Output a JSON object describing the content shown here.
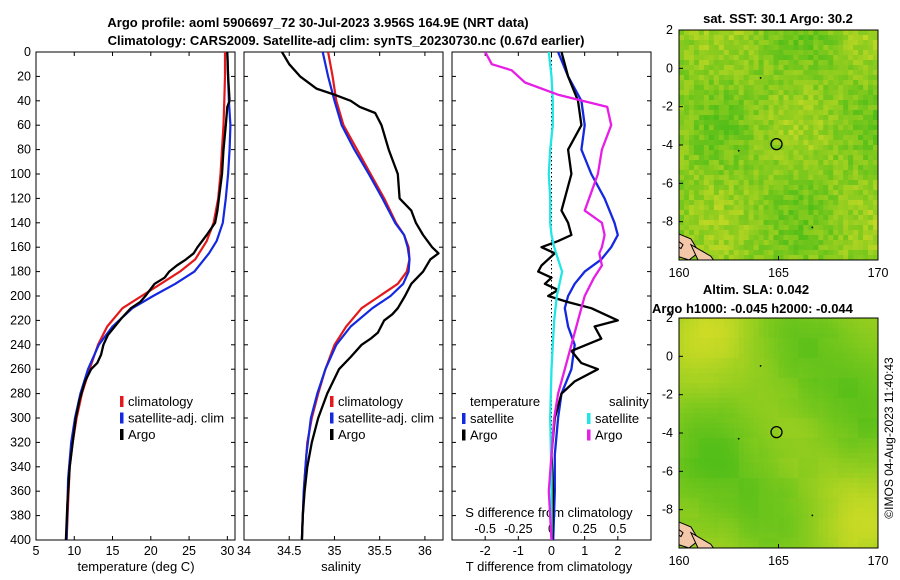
{
  "title_line1": "Argo profile: aoml 5906697_72 30-Jul-2023 3.956S 164.9E (NRT data)",
  "title_line2": "Climatology: CARS2009. Satellite-adj clim: synTS_20230730.nc (0.67d earlier)",
  "copyright": "©IMOS 04-Aug-2023 11:40:43",
  "colors": {
    "climatology": "#e31a1c",
    "satellite": "#1428e0",
    "argo": "#000000",
    "cyan": "#22e6e6",
    "magenta": "#e61ee6",
    "land": "#f2c8a8"
  },
  "chart_data": [
    {
      "type": "line",
      "xlabel": "temperature (deg C)",
      "ylabel": "",
      "xlim": [
        5,
        31
      ],
      "ylim": [
        0,
        400
      ],
      "xticks": [
        "5",
        "10",
        "15",
        "20",
        "25",
        "30"
      ],
      "yticks": [
        "0",
        "20",
        "40",
        "60",
        "80",
        "100",
        "120",
        "140",
        "160",
        "180",
        "200",
        "220",
        "240",
        "260",
        "280",
        "300",
        "320",
        "340",
        "360",
        "380",
        "400"
      ],
      "legend": [
        "climatology",
        "satellite-adj. clim",
        "Argo"
      ],
      "series": [
        {
          "name": "climatology",
          "x": [
            29.7,
            29.7,
            29.6,
            29.5,
            29.3,
            29.1,
            28.8,
            28.2,
            27.3,
            25.8,
            23.8,
            21.3,
            18.8,
            16.3,
            14.3,
            13.1,
            12.0,
            11.0,
            10.3,
            9.8,
            9.4,
            9.2,
            9.0
          ],
          "y": [
            0,
            20,
            40,
            60,
            80,
            100,
            120,
            140,
            155,
            170,
            180,
            190,
            200,
            210,
            225,
            240,
            260,
            280,
            300,
            320,
            340,
            370,
            400
          ]
        },
        {
          "name": "satellite-adj. clim",
          "x": [
            30.0,
            30.1,
            30.2,
            30.4,
            30.3,
            30.1,
            29.8,
            29.4,
            28.6,
            27.6,
            25.7,
            23.2,
            20.3,
            17.6,
            15.0,
            13.2,
            11.8,
            10.8,
            10.1,
            9.6,
            9.2,
            9.0
          ],
          "y": [
            0,
            20,
            40,
            60,
            80,
            100,
            120,
            140,
            155,
            165,
            180,
            190,
            200,
            210,
            225,
            240,
            260,
            280,
            300,
            320,
            350,
            400
          ]
        },
        {
          "name": "Argo",
          "x": [
            30.0,
            30.1,
            30.3,
            30.0,
            29.8,
            29.5,
            29.3,
            28.9,
            28.7,
            28.4,
            27.3,
            26.1,
            25.6,
            24.6,
            23.4,
            22.4,
            21.8,
            20.5,
            19.3,
            18.6,
            17.4,
            16.2,
            15.3,
            14.4,
            13.8,
            13.5,
            13.0,
            12.2,
            11.4,
            10.7,
            10.2,
            9.8,
            9.4,
            9.1,
            8.9
          ],
          "y": [
            0,
            20,
            40,
            45,
            60,
            80,
            100,
            120,
            130,
            140,
            150,
            160,
            165,
            170,
            175,
            180,
            185,
            190,
            200,
            205,
            210,
            218,
            225,
            232,
            240,
            248,
            255,
            260,
            270,
            285,
            300,
            320,
            340,
            370,
            400
          ]
        }
      ]
    },
    {
      "type": "line",
      "xlabel": "salinity",
      "xlim": [
        34,
        36.2
      ],
      "ylim": [
        0,
        400
      ],
      "xticks": [
        "34",
        "34.5",
        "35",
        "35.5",
        "36"
      ],
      "legend": [
        "climatology",
        "satellite-adj. clim",
        "Argo"
      ],
      "series": [
        {
          "name": "climatology",
          "x": [
            34.93,
            34.98,
            35.02,
            35.1,
            35.25,
            35.4,
            35.55,
            35.68,
            35.77,
            35.82,
            35.83,
            35.8,
            35.7,
            35.5,
            35.3,
            35.13,
            35.0,
            34.9,
            34.82,
            34.75,
            34.7,
            34.67,
            34.65,
            34.64
          ],
          "y": [
            0,
            20,
            40,
            60,
            80,
            100,
            120,
            140,
            150,
            160,
            170,
            180,
            190,
            200,
            210,
            225,
            240,
            260,
            280,
            300,
            320,
            350,
            380,
            400
          ]
        },
        {
          "name": "satellite-adj. clim",
          "x": [
            34.87,
            34.93,
            35.0,
            35.08,
            35.22,
            35.38,
            35.53,
            35.67,
            35.77,
            35.81,
            35.83,
            35.82,
            35.76,
            35.62,
            35.42,
            35.18,
            35.02,
            34.9,
            34.81,
            34.74,
            34.69,
            34.66,
            34.64
          ],
          "y": [
            0,
            20,
            40,
            60,
            80,
            100,
            120,
            140,
            150,
            160,
            170,
            180,
            190,
            200,
            210,
            225,
            240,
            260,
            280,
            300,
            330,
            360,
            400
          ]
        },
        {
          "name": "Argo",
          "x": [
            34.42,
            34.5,
            34.62,
            34.8,
            35.0,
            35.18,
            35.28,
            35.45,
            35.52,
            35.6,
            35.7,
            35.72,
            35.85,
            35.9,
            35.98,
            36.03,
            36.08,
            36.15,
            36.06,
            35.98,
            35.85,
            35.78,
            35.7,
            35.64,
            35.55,
            35.48,
            35.4,
            35.3,
            35.18,
            35.05,
            34.92,
            34.82,
            34.75,
            34.7,
            34.67,
            34.65,
            34.64
          ],
          "y": [
            0,
            10,
            20,
            30,
            35,
            40,
            45,
            50,
            60,
            80,
            100,
            120,
            130,
            140,
            150,
            155,
            160,
            165,
            170,
            180,
            190,
            200,
            210,
            215,
            220,
            230,
            235,
            240,
            250,
            260,
            280,
            300,
            320,
            340,
            360,
            380,
            400
          ]
        }
      ]
    },
    {
      "type": "line",
      "xlabel": "T difference from climatology",
      "xlabel_top": "S difference from climatology",
      "xlim": [
        -3,
        3
      ],
      "ylim": [
        0,
        400
      ],
      "xticks": [
        "-2",
        "-1",
        "0",
        "1",
        "2"
      ],
      "xticks_top": [
        "-0.5",
        "-0.25",
        "0",
        "0.25",
        "0.5"
      ],
      "legend": [
        "temperature",
        "satellite",
        "Argo",
        "salinity",
        "satellite",
        "Argo"
      ],
      "series": [
        {
          "name": "temperature satellite",
          "x": [
            0.2,
            0.5,
            0.9,
            1.0,
            0.9,
            1.2,
            1.6,
            1.9,
            2.0,
            1.8,
            1.5,
            1.0,
            0.7,
            0.5,
            0.4,
            0.5,
            0.7,
            0.6,
            0.3,
            0.2,
            0.1,
            0.1,
            0.05
          ],
          "y": [
            0,
            20,
            40,
            60,
            80,
            100,
            120,
            140,
            150,
            160,
            170,
            180,
            190,
            200,
            210,
            225,
            240,
            260,
            280,
            300,
            330,
            360,
            400
          ]
        },
        {
          "name": "Argo temperature",
          "x": [
            0.3,
            0.5,
            0.8,
            0.9,
            0.5,
            0.6,
            0.4,
            0.3,
            0.5,
            0.6,
            0.2,
            -0.3,
            0.1,
            -0.3,
            -0.4,
            0.0,
            -0.2,
            0.2,
            -0.1,
            0.5,
            1.2,
            2.0,
            1.3,
            1.5,
            0.6,
            0.9,
            1.4,
            0.7,
            0.3,
            0.1,
            0.0,
            0.05,
            0.02
          ],
          "y": [
            0,
            20,
            40,
            60,
            80,
            100,
            120,
            130,
            140,
            150,
            155,
            160,
            165,
            175,
            180,
            185,
            190,
            195,
            200,
            205,
            210,
            220,
            225,
            235,
            245,
            255,
            260,
            270,
            280,
            300,
            330,
            360,
            400
          ]
        },
        {
          "name": "salinity satellite",
          "x": [
            -0.02,
            0.0,
            0.01,
            0.01,
            -0.01,
            -0.02,
            -0.01,
            -0.01,
            0.0,
            0.02,
            0.05,
            0.08,
            0.06,
            0.04,
            0.02,
            0.01,
            0.0,
            -0.01,
            0.0,
            0.0
          ],
          "y": [
            0,
            20,
            40,
            60,
            80,
            100,
            120,
            140,
            150,
            160,
            170,
            180,
            190,
            200,
            220,
            240,
            260,
            300,
            350,
            400
          ]
        },
        {
          "name": "Argo salinity",
          "x": [
            -0.5,
            -0.45,
            -0.3,
            -0.2,
            0.05,
            0.42,
            0.45,
            0.38,
            0.35,
            0.3,
            0.25,
            0.38,
            0.4,
            0.38,
            0.36,
            0.38,
            0.32,
            0.25,
            0.2,
            0.15,
            0.1,
            0.05,
            0.02,
            0.0,
            -0.02,
            0.0
          ],
          "y": [
            0,
            10,
            15,
            25,
            35,
            45,
            60,
            80,
            100,
            115,
            130,
            140,
            150,
            160,
            165,
            175,
            185,
            200,
            220,
            240,
            260,
            280,
            300,
            330,
            360,
            400
          ]
        }
      ]
    },
    {
      "type": "heatmap",
      "title": "sat. SST: 30.1 Argo: 30.2",
      "xlim": [
        160,
        170
      ],
      "ylim": [
        -10,
        2
      ],
      "xticks": [
        "160",
        "165",
        "170"
      ],
      "yticks": [
        "2",
        "0",
        "-2",
        "-4",
        "-6",
        "-8"
      ],
      "marker": {
        "lon": 164.9,
        "lat": -3.956
      }
    },
    {
      "type": "heatmap",
      "title_line1": "Altim. SLA: 0.042",
      "title_line2": "Argo h1000: -0.045 h2000: -0.044",
      "xlim": [
        160,
        170
      ],
      "ylim": [
        -10,
        2
      ],
      "xticks": [
        "160",
        "165",
        "170"
      ],
      "yticks": [
        "2",
        "0",
        "-2",
        "-4",
        "-6",
        "-8"
      ],
      "marker": {
        "lon": 164.9,
        "lat": -3.956
      }
    }
  ]
}
